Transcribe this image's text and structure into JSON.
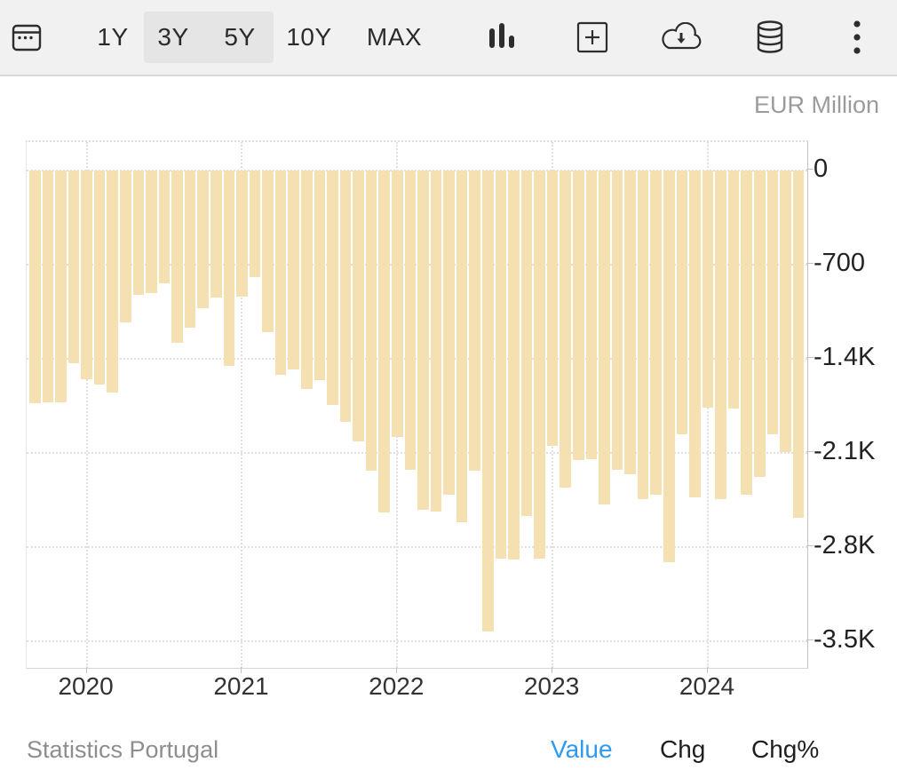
{
  "toolbar": {
    "ranges": [
      {
        "label": "1Y",
        "selected": false
      },
      {
        "label": "3Y",
        "selected": true
      },
      {
        "label": "5Y",
        "selected": true
      },
      {
        "label": "10Y",
        "selected": false
      },
      {
        "label": "MAX",
        "selected": false
      }
    ],
    "icons": {
      "calendar": "calendar-icon",
      "chart_type": "bar-chart-icon",
      "compare": "add-compare-icon",
      "export": "cloud-download-icon",
      "data": "database-icon",
      "more": "more-options-icon"
    }
  },
  "chart": {
    "unit_label": "EUR Million",
    "source_label": "Statistics Portugal",
    "footer_tabs": [
      {
        "label": "Value",
        "active": true
      },
      {
        "label": "Chg",
        "active": false
      },
      {
        "label": "Chg%",
        "active": false
      }
    ],
    "colors": {
      "bar": "#f5e0b2",
      "active_tab_blue": "#2e9bf2",
      "gridline": "#e0e0e0",
      "toolbar_bg": "#f1f1f1",
      "selected_range_bg": "#e5e5e5"
    }
  },
  "chart_data": {
    "type": "bar",
    "title": "",
    "xlabel": "",
    "ylabel": "EUR Million",
    "x": [
      "2019-09",
      "2019-10",
      "2019-11",
      "2019-12",
      "2020-01",
      "2020-02",
      "2020-03",
      "2020-04",
      "2020-05",
      "2020-06",
      "2020-07",
      "2020-08",
      "2020-09",
      "2020-10",
      "2020-11",
      "2020-12",
      "2021-01",
      "2021-02",
      "2021-03",
      "2021-04",
      "2021-05",
      "2021-06",
      "2021-07",
      "2021-08",
      "2021-09",
      "2021-10",
      "2021-11",
      "2021-12",
      "2022-01",
      "2022-02",
      "2022-03",
      "2022-04",
      "2022-05",
      "2022-06",
      "2022-07",
      "2022-08",
      "2022-09",
      "2022-10",
      "2022-11",
      "2022-12",
      "2023-01",
      "2023-02",
      "2023-03",
      "2023-04",
      "2023-05",
      "2023-06",
      "2023-07",
      "2023-08",
      "2023-09",
      "2023-10",
      "2023-11",
      "2023-12",
      "2024-01",
      "2024-02",
      "2024-03",
      "2024-04",
      "2024-05",
      "2024-06",
      "2024-07",
      "2024-08"
    ],
    "values": [
      -1730,
      -1720,
      -1720,
      -1430,
      -1550,
      -1590,
      -1650,
      -1130,
      -925,
      -910,
      -840,
      -1280,
      -1170,
      -1020,
      -945,
      -1455,
      -935,
      -790,
      -1200,
      -1520,
      -1480,
      -1625,
      -1560,
      -1740,
      -1870,
      -2015,
      -2230,
      -2540,
      -1980,
      -2225,
      -2520,
      -2535,
      -2410,
      -2615,
      -2235,
      -3425,
      -2885,
      -2895,
      -2570,
      -2885,
      -2050,
      -2360,
      -2155,
      -2145,
      -2485,
      -2225,
      -2260,
      -2445,
      -2410,
      -2915,
      -1960,
      -2430,
      -1760,
      -2445,
      -1770,
      -2410,
      -2280,
      -1960,
      -2090,
      -2585
    ],
    "y_ticks": [
      {
        "label": "0",
        "value": 0
      },
      {
        "label": "-700",
        "value": -700
      },
      {
        "label": "-1.4K",
        "value": -1400
      },
      {
        "label": "-2.1K",
        "value": -2100
      },
      {
        "label": "-2.8K",
        "value": -2800
      },
      {
        "label": "-3.5K",
        "value": -3500
      }
    ],
    "x_ticks": [
      {
        "label": "2020",
        "month_index": 4
      },
      {
        "label": "2021",
        "month_index": 16
      },
      {
        "label": "2022",
        "month_index": 28
      },
      {
        "label": "2023",
        "month_index": 40
      },
      {
        "label": "2024",
        "month_index": 52
      }
    ],
    "ylim": [
      -3700,
      0
    ],
    "grid": true,
    "legend": false
  }
}
